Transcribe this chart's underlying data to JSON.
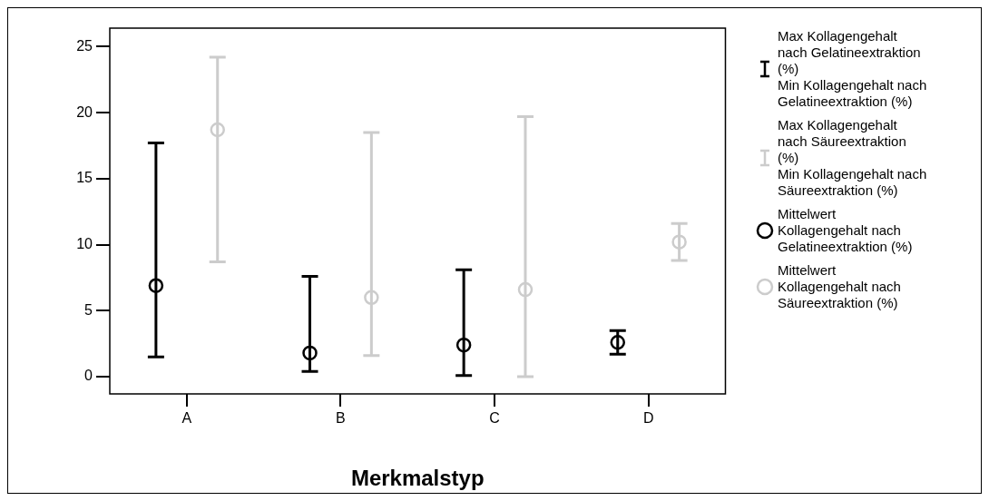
{
  "chart_data": {
    "type": "scatter",
    "xlabel": "Merkmalstyp",
    "categories": [
      "A",
      "B",
      "C",
      "D"
    ],
    "ylim": [
      -1.3,
      26.4
    ],
    "yticks": [
      0,
      5,
      10,
      15,
      20,
      25
    ],
    "marker": "circle",
    "legend": "right",
    "annotations": [
      "Max Kollagengehalt nach Gelatineextraktion (%)",
      "Min Kollagengehalt nach Gelatineextraktion (%)",
      "Max Kollagengehalt nach Säureextraktion (%)",
      "Min Kollagengehalt nach Säureextraktion (%)"
    ],
    "series": [
      {
        "name": "Mittelwert Kollagengehalt nach Gelatineextraktion (%)",
        "color": "#000000",
        "values": [
          6.9,
          1.8,
          2.4,
          2.6
        ],
        "errors": [
          [
            1.5,
            17.7
          ],
          [
            0.4,
            7.6
          ],
          [
            0.1,
            8.1
          ],
          [
            1.7,
            3.5
          ]
        ]
      },
      {
        "name": "Mittelwert Kollagengehalt nach Säureextraktion (%)",
        "color": "#cccccc",
        "values": [
          18.7,
          6.0,
          6.6,
          10.2
        ],
        "errors": [
          [
            8.7,
            24.2
          ],
          [
            1.6,
            18.5
          ],
          [
            0.0,
            19.7
          ],
          [
            8.8,
            11.6
          ]
        ]
      }
    ]
  }
}
